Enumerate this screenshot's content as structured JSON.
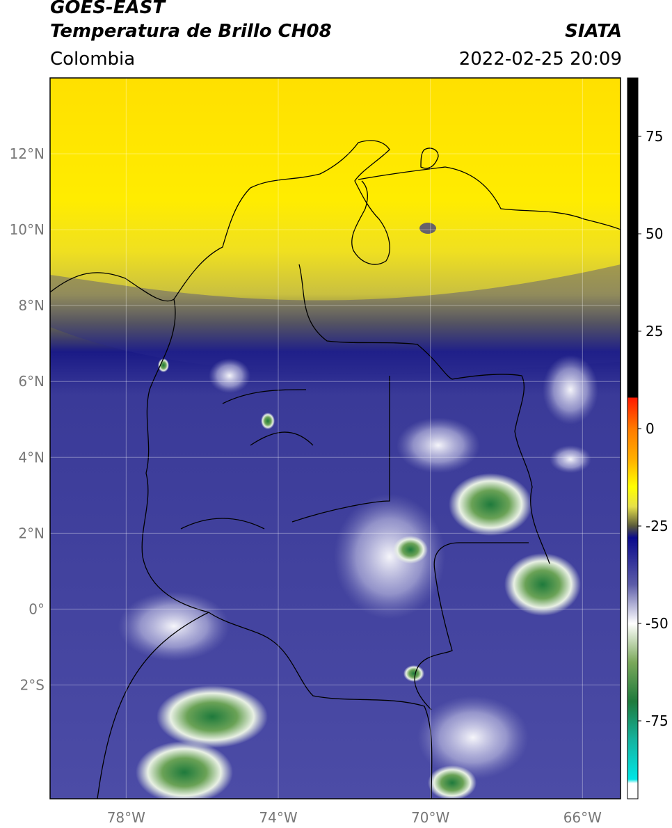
{
  "header": {
    "line1": "GOES-EAST",
    "line2": "Temperatura de Brillo CH08",
    "region": "Colombia",
    "source": "SIATA",
    "datetime": "2022-02-25 20:09"
  },
  "map": {
    "lon_labels": [
      "78°W",
      "74°W",
      "70°W",
      "66°W"
    ],
    "lat_labels": [
      "12°N",
      "10°N",
      "8°N",
      "6°N",
      "4°N",
      "2°N",
      "0°",
      "2°S"
    ],
    "lon_values": [
      -78,
      -74,
      -70,
      -66
    ],
    "lat_values": [
      12,
      10,
      8,
      6,
      4,
      2,
      0,
      -2
    ],
    "extent": {
      "lon_min": -80,
      "lon_max": -65,
      "lat_min": -5,
      "lat_max": 14
    }
  },
  "colorbar": {
    "labels": [
      "75",
      "50",
      "25",
      "0",
      "-25",
      "-50",
      "-75"
    ],
    "values": [
      75,
      50,
      25,
      0,
      -25,
      -50,
      -75
    ],
    "range": [
      -95,
      90
    ],
    "stops": [
      {
        "v": 90,
        "c": "#000000"
      },
      {
        "v": 8,
        "c": "#000000"
      },
      {
        "v": 7.9,
        "c": "#ff1a00"
      },
      {
        "v": 0,
        "c": "#ff7a00"
      },
      {
        "v": -8,
        "c": "#ffb000"
      },
      {
        "v": -15,
        "c": "#ffff00"
      },
      {
        "v": -20,
        "c": "#e6e04a"
      },
      {
        "v": -25,
        "c": "#5a5a3a"
      },
      {
        "v": -28,
        "c": "#0a0a8c"
      },
      {
        "v": -40,
        "c": "#5c5ca8"
      },
      {
        "v": -50,
        "c": "#ffffff"
      },
      {
        "v": -60,
        "c": "#7aa85a"
      },
      {
        "v": -70,
        "c": "#1e7a3c"
      },
      {
        "v": -80,
        "c": "#14b4a0"
      },
      {
        "v": -90,
        "c": "#00e6e6"
      },
      {
        "v": -91,
        "c": "#ffffff"
      },
      {
        "v": -95,
        "c": "#ffffff"
      }
    ]
  }
}
